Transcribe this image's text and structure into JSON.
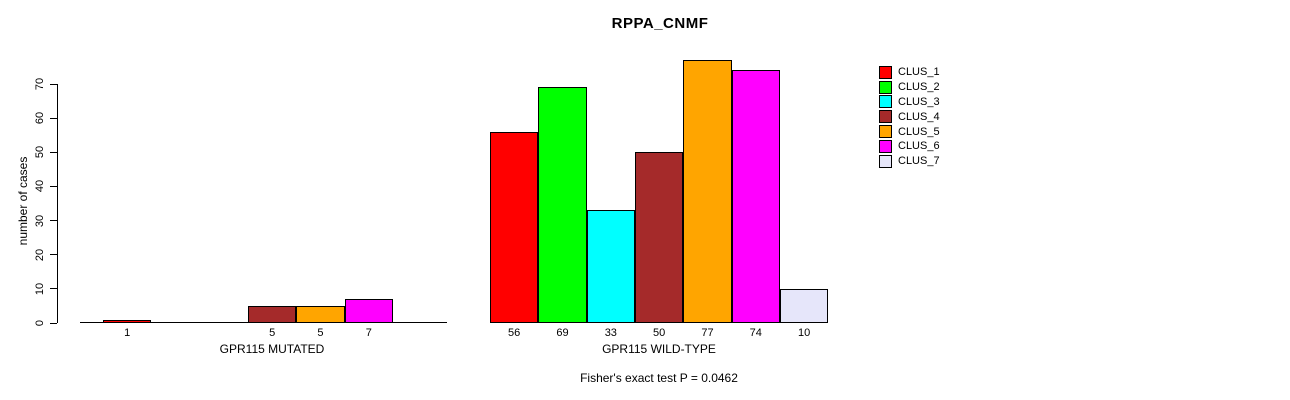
{
  "chart_data": {
    "type": "bar",
    "title": "RPPA_CNMF",
    "ylabel": "number of cases",
    "ylim": [
      0,
      70
    ],
    "yticks": [
      0,
      10,
      20,
      30,
      40,
      50,
      60,
      70
    ],
    "grid": false,
    "legend_position": "top-right",
    "zero_bars_hidden": true,
    "clusters": [
      {
        "name": "CLUS_1",
        "color": "#ff0000"
      },
      {
        "name": "CLUS_2",
        "color": "#00ff00"
      },
      {
        "name": "CLUS_3",
        "color": "#00ffff"
      },
      {
        "name": "CLUS_4",
        "color": "#a52a2a"
      },
      {
        "name": "CLUS_5",
        "color": "#ffa500"
      },
      {
        "name": "CLUS_6",
        "color": "#ff00ff"
      },
      {
        "name": "CLUS_7",
        "color": "#e6e6fa"
      }
    ],
    "groups": [
      {
        "label": "GPR115 MUTATED",
        "values": [
          1,
          0,
          0,
          5,
          5,
          7,
          0
        ]
      },
      {
        "label": "GPR115 WILD-TYPE",
        "values": [
          56,
          69,
          33,
          50,
          77,
          74,
          10
        ]
      }
    ],
    "footnote": "Fisher's exact test P = 0.0462"
  }
}
